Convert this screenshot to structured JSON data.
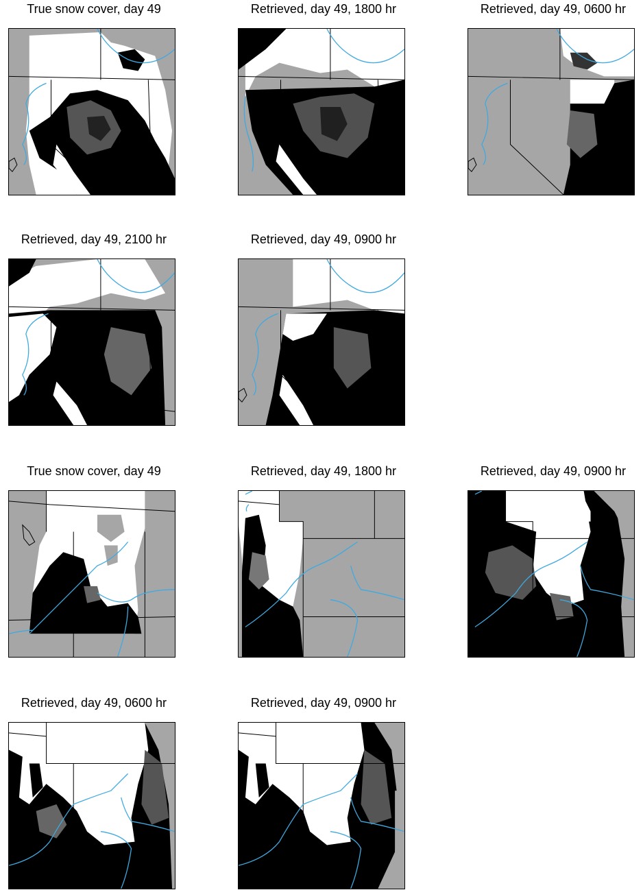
{
  "panels": [
    {
      "title": "True snow cover, day 49"
    },
    {
      "title": "Retrieved, day 49, 1800 hr"
    },
    {
      "title": "Retrieved, day 49, 0600 hr"
    },
    {
      "title": "Retrieved, day 49, 2100 hr"
    },
    {
      "title": "Retrieved, day 49, 0900 hr"
    },
    {
      "title": "True snow cover, day 49"
    },
    {
      "title": "Retrieved, day 49, 1800 hr"
    },
    {
      "title": "Retrieved, day 49, 0900 hr"
    },
    {
      "title": "Retrieved, day 49, 0600 hr"
    },
    {
      "title": "Retrieved, day 49, 0900 hr"
    }
  ],
  "colors": {
    "no_data": "#a6a6a6",
    "snow": "#ffffff",
    "bare": "#000000",
    "river": "#3fa9e0",
    "border": "#000000"
  }
}
